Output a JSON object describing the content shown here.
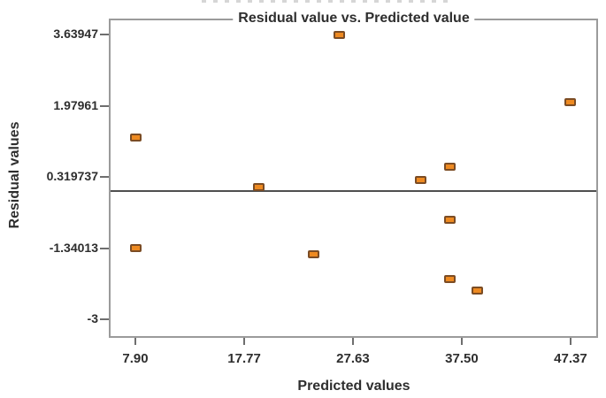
{
  "chart_data": {
    "type": "scatter",
    "title": "Residual value vs. Predicted value",
    "xlabel": "Predicted values",
    "ylabel": "Residual values",
    "xlim": [
      5.49,
      49.86
    ],
    "ylim": [
      -3.43,
      4.02
    ],
    "grid": false,
    "legend": "none",
    "x_ticks": [
      {
        "value": 7.9,
        "label": "7.90"
      },
      {
        "value": 17.77,
        "label": "17.77"
      },
      {
        "value": 27.63,
        "label": "27.63"
      },
      {
        "value": 37.5,
        "label": "37.50"
      },
      {
        "value": 47.37,
        "label": "47.37"
      }
    ],
    "y_ticks": [
      {
        "value": 3.63947,
        "label": "3.63947"
      },
      {
        "value": 1.97961,
        "label": "1.97961"
      },
      {
        "value": 0.319737,
        "label": "0.319737"
      },
      {
        "value": -1.34013,
        "label": "-1.34013"
      },
      {
        "value": -3,
        "label": "-3"
      }
    ],
    "reference_line_y": 0,
    "points": [
      [
        7.9,
        1.25
      ],
      [
        7.9,
        -1.34
      ],
      [
        19.1,
        0.08
      ],
      [
        24.1,
        -1.48
      ],
      [
        26.4,
        3.64
      ],
      [
        33.8,
        0.26
      ],
      [
        36.4,
        0.57
      ],
      [
        36.4,
        -0.67
      ],
      [
        36.4,
        -2.05
      ],
      [
        38.9,
        -2.32
      ],
      [
        47.3,
        2.08
      ]
    ],
    "marker": {
      "shape": "rounded-square",
      "fill_color": "#EE8A21",
      "border_color": "#7B4C24"
    },
    "colors": {
      "plot_border": "#9b9b9b",
      "reference_line": "#4f4f4f",
      "tick_mark": "#6e6e6e",
      "text": "#2e2e2e",
      "background": "#ffffff"
    }
  }
}
